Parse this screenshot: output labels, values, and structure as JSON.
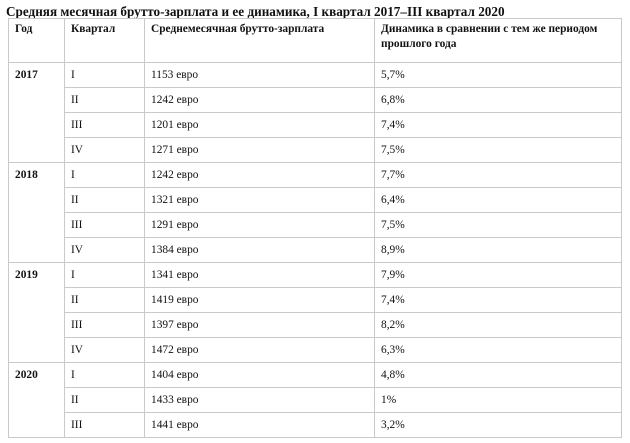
{
  "title": "Средняя месячная брутто-зарплата и ее динамика, I квартал 2017–III квартал 2020",
  "columns": [
    "Год",
    "Квартал",
    "Среднемесячная брутто-зарплата",
    "Динамика в сравнении с тем же периодом прошлого года"
  ],
  "groups": [
    {
      "year": "2017",
      "rows": [
        {
          "quarter": "I",
          "salary": "1153 евро",
          "dynamics": "5,7%"
        },
        {
          "quarter": "II",
          "salary": "1242 евро",
          "dynamics": "6,8%"
        },
        {
          "quarter": "III",
          "salary": "1201 евро",
          "dynamics": "7,4%"
        },
        {
          "quarter": "IV",
          "salary": "1271 евро",
          "dynamics": "7,5%"
        }
      ]
    },
    {
      "year": "2018",
      "rows": [
        {
          "quarter": "I",
          "salary": "1242 евро",
          "dynamics": "7,7%"
        },
        {
          "quarter": "II",
          "salary": "1321 евро",
          "dynamics": "6,4%"
        },
        {
          "quarter": "III",
          "salary": "1291 евро",
          "dynamics": "7,5%"
        },
        {
          "quarter": "IV",
          "salary": "1384 евро",
          "dynamics": "8,9%"
        }
      ]
    },
    {
      "year": "2019",
      "rows": [
        {
          "quarter": "I",
          "salary": "1341 евро",
          "dynamics": "7,9%"
        },
        {
          "quarter": "II",
          "salary": "1419 евро",
          "dynamics": "7,4%"
        },
        {
          "quarter": "III",
          "salary": "1397 евро",
          "dynamics": "8,2%"
        },
        {
          "quarter": "IV",
          "salary": "1472 евро",
          "dynamics": "6,3%"
        }
      ]
    },
    {
      "year": "2020",
      "rows": [
        {
          "quarter": "I",
          "salary": "1404 евро",
          "dynamics": "4,8%"
        },
        {
          "quarter": "II",
          "salary": "1433 евро",
          "dynamics": "1%"
        },
        {
          "quarter": "III",
          "salary": "1441 евро",
          "dynamics": "3,2%"
        }
      ]
    }
  ]
}
